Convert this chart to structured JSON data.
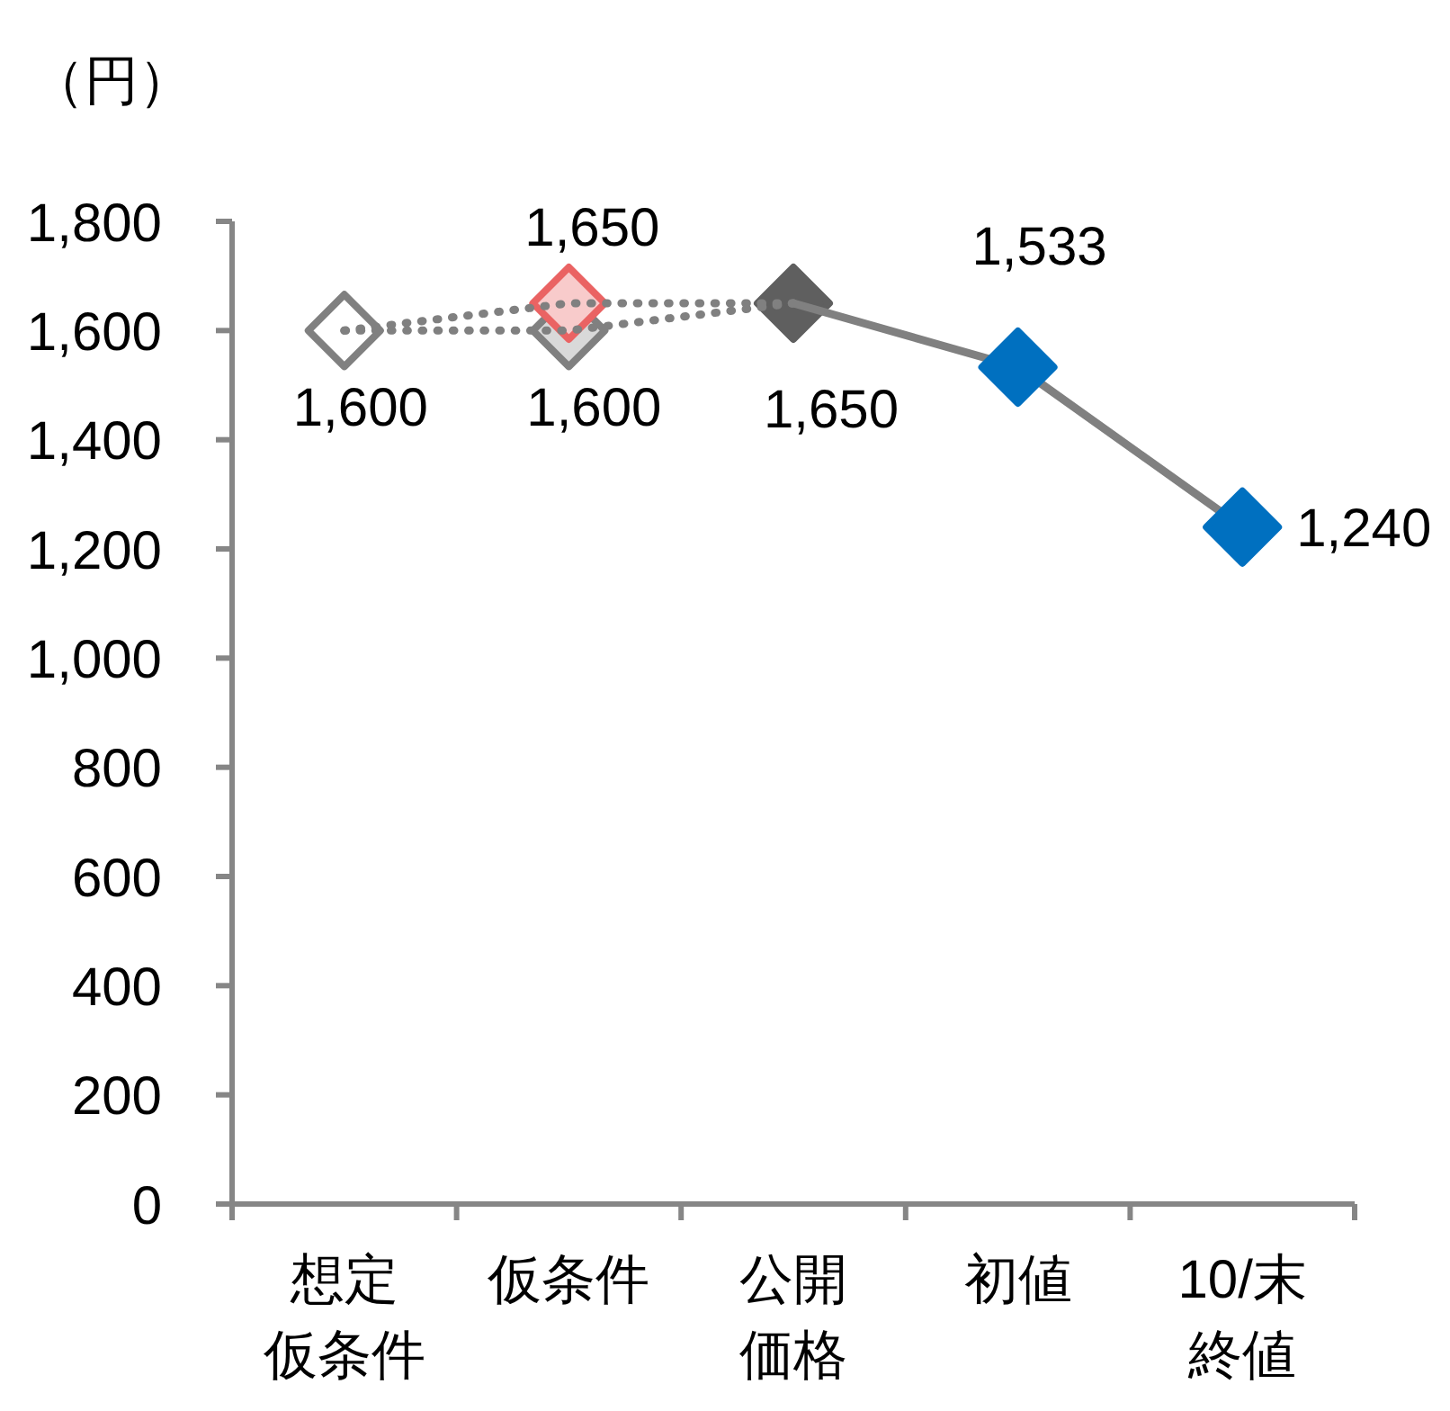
{
  "chart_data": {
    "type": "line",
    "ylabel": "（円）",
    "categories": [
      "想定仮条件",
      "仮条件",
      "公開価格",
      "初値",
      "10/末終値"
    ],
    "ylim": [
      0,
      1800
    ],
    "yticks": [
      0,
      200,
      400,
      600,
      800,
      {
        "value": 1000,
        "label": "1,000"
      },
      {
        "value": 1200,
        "label": "1,200"
      },
      {
        "value": 1400,
        "label": "1,400"
      },
      {
        "value": 1600,
        "label": "1,600"
      },
      {
        "value": 1800,
        "label": "1,800"
      }
    ],
    "marker": "diamond",
    "series": [
      {
        "color": "#808080",
        "line_style": "dotted",
        "values": [
          1600,
          1600,
          1650,
          null,
          null
        ],
        "colors": [
          "#ffffff",
          "#d9d9d9",
          null,
          null,
          null
        ],
        "value_labels": [
          "1,600",
          "1,600",
          null,
          null,
          null
        ]
      },
      {
        "color": "#808080",
        "line_style": "dotted",
        "values": [
          1600,
          1650,
          1650,
          null,
          null
        ],
        "colors": [
          null,
          "#f8cbcb",
          "#5f5f5f",
          null,
          null
        ],
        "value_labels": [
          null,
          "1,650",
          null,
          null,
          null
        ]
      },
      {
        "color": "#808080",
        "line_style": "solid",
        "values": [
          null,
          null,
          1650,
          1533,
          1240
        ],
        "colors": [
          null,
          null,
          null,
          "#0070c0",
          "#0070c0"
        ],
        "value_labels": [
          null,
          null,
          "1,650",
          "1,533",
          "1,240"
        ]
      }
    ]
  }
}
